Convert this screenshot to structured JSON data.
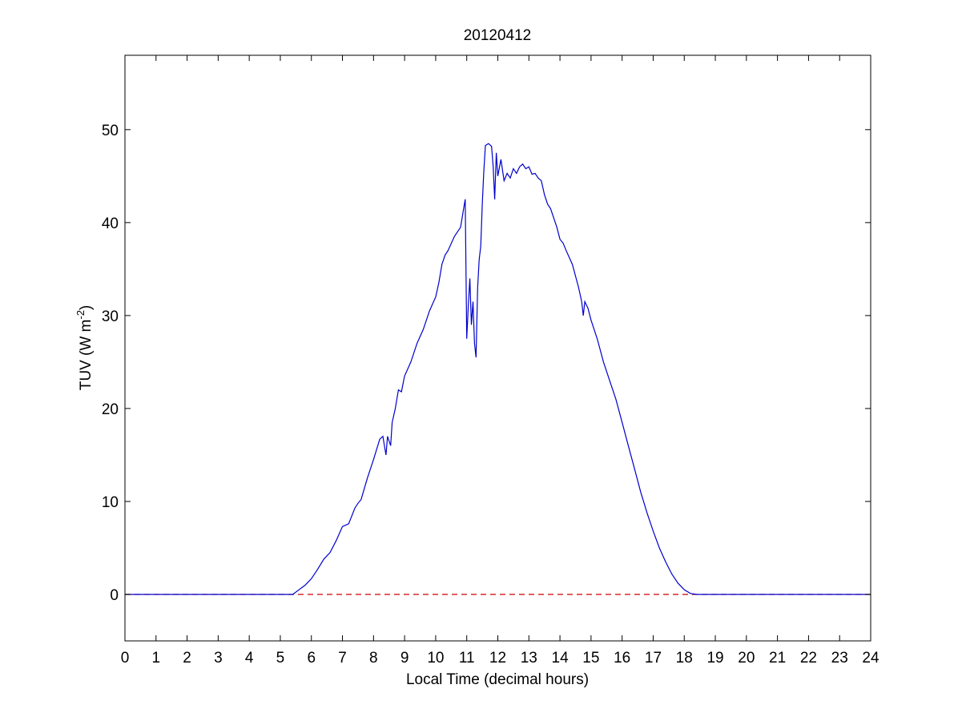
{
  "chart_data": {
    "type": "line",
    "title": "20120412",
    "xlabel": "Local Time (decimal hours)",
    "ylabel_main": "TUV (W m",
    "ylabel_sup": "-2",
    "ylabel_tail": ")",
    "xlim": [
      0,
      24
    ],
    "ylim": [
      -5,
      58
    ],
    "xticks": [
      0,
      1,
      2,
      3,
      4,
      5,
      6,
      7,
      8,
      9,
      10,
      11,
      12,
      13,
      14,
      15,
      16,
      17,
      18,
      19,
      20,
      21,
      22,
      23,
      24
    ],
    "yticks": [
      0,
      10,
      20,
      30,
      40,
      50
    ],
    "grid": false,
    "series": [
      {
        "color": "#0000cc",
        "x": [
          0,
          5.4,
          5.6,
          5.8,
          6.0,
          6.2,
          6.4,
          6.6,
          6.8,
          7.0,
          7.2,
          7.4,
          7.5,
          7.6,
          7.8,
          8.0,
          8.2,
          8.3,
          8.35,
          8.4,
          8.45,
          8.5,
          8.55,
          8.6,
          8.7,
          8.8,
          8.9,
          9.0,
          9.2,
          9.4,
          9.6,
          9.8,
          10.0,
          10.1,
          10.2,
          10.3,
          10.4,
          10.6,
          10.8,
          10.9,
          10.95,
          11.0,
          11.05,
          11.1,
          11.15,
          11.2,
          11.25,
          11.3,
          11.35,
          11.4,
          11.45,
          11.5,
          11.55,
          11.6,
          11.7,
          11.8,
          11.85,
          11.9,
          11.95,
          12.0,
          12.1,
          12.2,
          12.3,
          12.4,
          12.5,
          12.6,
          12.7,
          12.8,
          12.9,
          13.0,
          13.1,
          13.2,
          13.3,
          13.4,
          13.5,
          13.6,
          13.7,
          13.8,
          13.9,
          14.0,
          14.1,
          14.2,
          14.4,
          14.6,
          14.7,
          14.75,
          14.8,
          14.9,
          15.0,
          15.2,
          15.4,
          15.6,
          15.8,
          16.0,
          16.2,
          16.4,
          16.6,
          16.8,
          17.0,
          17.2,
          17.4,
          17.6,
          17.8,
          18.0,
          18.2,
          18.4,
          18.6,
          18.8,
          19.0,
          19.2,
          24
        ],
        "y": [
          0,
          0,
          0.5,
          1.0,
          1.7,
          2.7,
          3.8,
          4.5,
          5.8,
          7.3,
          7.6,
          9.3,
          9.8,
          10.2,
          12.5,
          14.5,
          16.7,
          17.0,
          16.0,
          15.0,
          17.0,
          16.5,
          16.0,
          18.5,
          20.0,
          22.0,
          21.8,
          23.5,
          25.0,
          27.0,
          28.5,
          30.5,
          32.0,
          33.5,
          35.5,
          36.5,
          37.0,
          38.5,
          39.5,
          41.5,
          42.5,
          27.5,
          31.0,
          34.0,
          29.0,
          31.5,
          27.0,
          25.5,
          33.0,
          36.0,
          37.5,
          42.0,
          45.5,
          48.3,
          48.5,
          48.2,
          46.0,
          42.5,
          47.5,
          45.0,
          46.8,
          44.5,
          45.3,
          44.8,
          45.8,
          45.3,
          46.0,
          46.3,
          45.8,
          46.0,
          45.2,
          45.3,
          44.8,
          44.5,
          43.0,
          42.0,
          41.5,
          40.5,
          39.5,
          38.2,
          37.8,
          37.0,
          35.5,
          33.0,
          31.5,
          30.0,
          31.5,
          30.8,
          29.5,
          27.5,
          25.0,
          23.0,
          21.0,
          18.5,
          16.0,
          13.5,
          11.0,
          8.8,
          6.8,
          5.0,
          3.5,
          2.2,
          1.2,
          0.5,
          0.1,
          0,
          0,
          0,
          0,
          0,
          0
        ]
      },
      {
        "color": "#cc0000",
        "dash": "dashed",
        "x": [
          0,
          24
        ],
        "y": [
          0,
          0
        ]
      }
    ]
  }
}
